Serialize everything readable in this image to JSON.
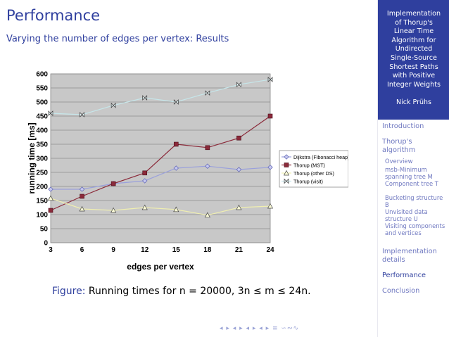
{
  "slide": {
    "title": "Performance",
    "subtitle": "Varying the number of edges per vertex: Results",
    "caption_label": "Figure:",
    "caption_text": "Running times for n = 20000, 3n ≤ m ≤ 24n.",
    "nav_symbols": "◂ ▸ ◂ ▸ ◂ ▸ ◂ ▸  ≡  ∽∾∿"
  },
  "sidebar": {
    "title_lines": [
      "Implementation",
      "of Thorup's",
      "Linear Time",
      "Algorithm for",
      "Undirected",
      "Single-Source",
      "Shortest Paths",
      "with Positive",
      "Integer Weights"
    ],
    "author": "Nick Prühs",
    "sections": [
      {
        "label": "Introduction",
        "active": false
      },
      {
        "label": "Thorup's algorithm",
        "active": false
      },
      {
        "label": "Implementation details",
        "active": false
      },
      {
        "label": "Performance",
        "active": true
      },
      {
        "label": "Conclusion",
        "active": false
      }
    ],
    "subsections": [
      {
        "label": "Overview"
      },
      {
        "label": "msb-Minimum spanning tree M"
      },
      {
        "label": "Component tree T"
      },
      {
        "label": "Bucketing structure B"
      },
      {
        "label": "Unvisited data structure U"
      },
      {
        "label": "Visiting components and vertices"
      }
    ]
  },
  "chart_data": {
    "type": "line",
    "xlabel": "edges per vertex",
    "ylabel": "running time [ms]",
    "x": [
      3,
      6,
      9,
      12,
      15,
      18,
      21,
      24
    ],
    "ylim": [
      0,
      600
    ],
    "yticks": [
      0,
      50,
      100,
      150,
      200,
      250,
      300,
      350,
      400,
      450,
      500,
      550,
      600
    ],
    "grid": true,
    "legend_position": "right",
    "series": [
      {
        "name": "Dijkstra (Fibonacci heap)",
        "marker": "diamond",
        "color": "#9aa0dc",
        "values": [
          190,
          190,
          210,
          220,
          265,
          272,
          260,
          268
        ]
      },
      {
        "name": "Thorup (MST)",
        "marker": "square",
        "color": "#8b2a3a",
        "values": [
          115,
          165,
          210,
          248,
          350,
          338,
          372,
          450
        ]
      },
      {
        "name": "Thorup (other DS)",
        "marker": "triangle",
        "color": "#f0efb0",
        "values": [
          158,
          120,
          115,
          125,
          118,
          98,
          125,
          130
        ]
      },
      {
        "name": "Thorup (visit)",
        "marker": "bowtie",
        "color": "#c6e6ea",
        "values": [
          460,
          455,
          488,
          515,
          500,
          532,
          562,
          580
        ]
      }
    ]
  }
}
